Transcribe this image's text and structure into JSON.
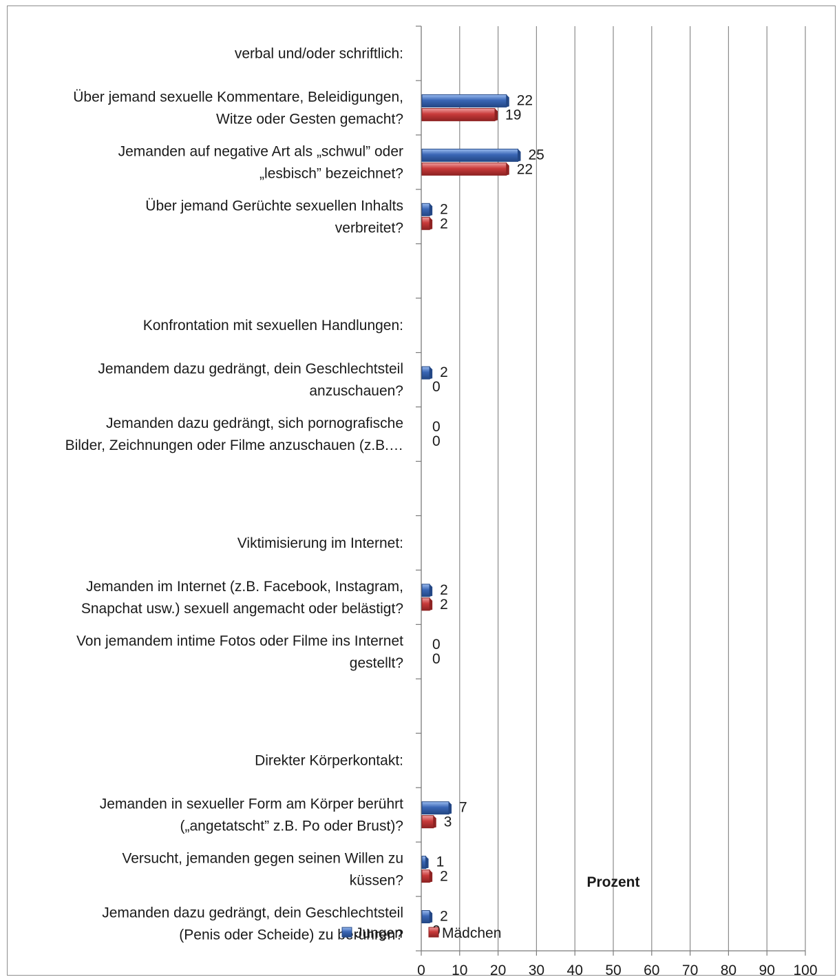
{
  "chart_data": {
    "type": "bar",
    "orientation": "horizontal",
    "xlabel": "Prozent",
    "xlim": [
      0,
      100
    ],
    "x_ticks": [
      0,
      10,
      20,
      30,
      40,
      50,
      60,
      70,
      80,
      90,
      100
    ],
    "grid": "vertical gridlines",
    "legend_position": "bottom",
    "categories": [
      {
        "lines": [
          "verbal und/oder schriftlich:"
        ],
        "jungen": null,
        "maedchen": null
      },
      {
        "lines": [
          "Über jemand sexuelle Kommentare, Beleidigungen,",
          "Witze oder Gesten gemacht?"
        ],
        "jungen": 22,
        "maedchen": 19
      },
      {
        "lines": [
          "Jemanden auf negative Art als „schwul” oder",
          "„lesbisch” bezeichnet?"
        ],
        "jungen": 25,
        "maedchen": 22
      },
      {
        "lines": [
          "Über jemand Gerüchte sexuellen Inhalts",
          "verbreitet?"
        ],
        "jungen": 2,
        "maedchen": 2
      },
      {
        "lines": [],
        "jungen": null,
        "maedchen": null
      },
      {
        "lines": [
          "Konfrontation mit sexuellen Handlungen:"
        ],
        "jungen": null,
        "maedchen": null
      },
      {
        "lines": [
          "Jemandem dazu gedrängt, dein Geschlechtsteil",
          "anzuschauen?"
        ],
        "jungen": 2,
        "maedchen": 0
      },
      {
        "lines": [
          "Jemanden dazu gedrängt, sich pornografische",
          "Bilder, Zeichnungen oder Filme anzuschauen (z.B.…"
        ],
        "jungen": 0,
        "maedchen": 0
      },
      {
        "lines": [],
        "jungen": null,
        "maedchen": null
      },
      {
        "lines": [
          "Viktimisierung im Internet:"
        ],
        "jungen": null,
        "maedchen": null
      },
      {
        "lines": [
          "Jemanden im Internet (z.B. Facebook, Instagram,",
          "Snapchat usw.) sexuell angemacht oder belästigt?"
        ],
        "jungen": 2,
        "maedchen": 2
      },
      {
        "lines": [
          "Von jemandem intime Fotos oder Filme ins Internet",
          "gestellt?"
        ],
        "jungen": 0,
        "maedchen": 0
      },
      {
        "lines": [],
        "jungen": null,
        "maedchen": null
      },
      {
        "lines": [
          "Direkter Körperkontakt:"
        ],
        "jungen": null,
        "maedchen": null
      },
      {
        "lines": [
          "Jemanden in sexueller Form am Körper berührt",
          "(„angetatscht” z.B. Po oder Brust)?"
        ],
        "jungen": 7,
        "maedchen": 3
      },
      {
        "lines": [
          "Versucht, jemanden gegen seinen Willen zu",
          "küssen?"
        ],
        "jungen": 1,
        "maedchen": 2
      },
      {
        "lines": [
          "Jemanden dazu gedrängt, dein Geschlechtsteil",
          "(Penis oder Scheide) zu berühren?"
        ],
        "jungen": 2,
        "maedchen": 0
      }
    ],
    "series": [
      {
        "key": "jungen",
        "name": "Jungen",
        "color": "#3a66b5",
        "dark": "#234785",
        "light": "#8fb0e6"
      },
      {
        "key": "maedchen",
        "name": "Mädchen",
        "color": "#c83a3a",
        "dark": "#8e2222",
        "light": "#ea9090"
      }
    ]
  }
}
